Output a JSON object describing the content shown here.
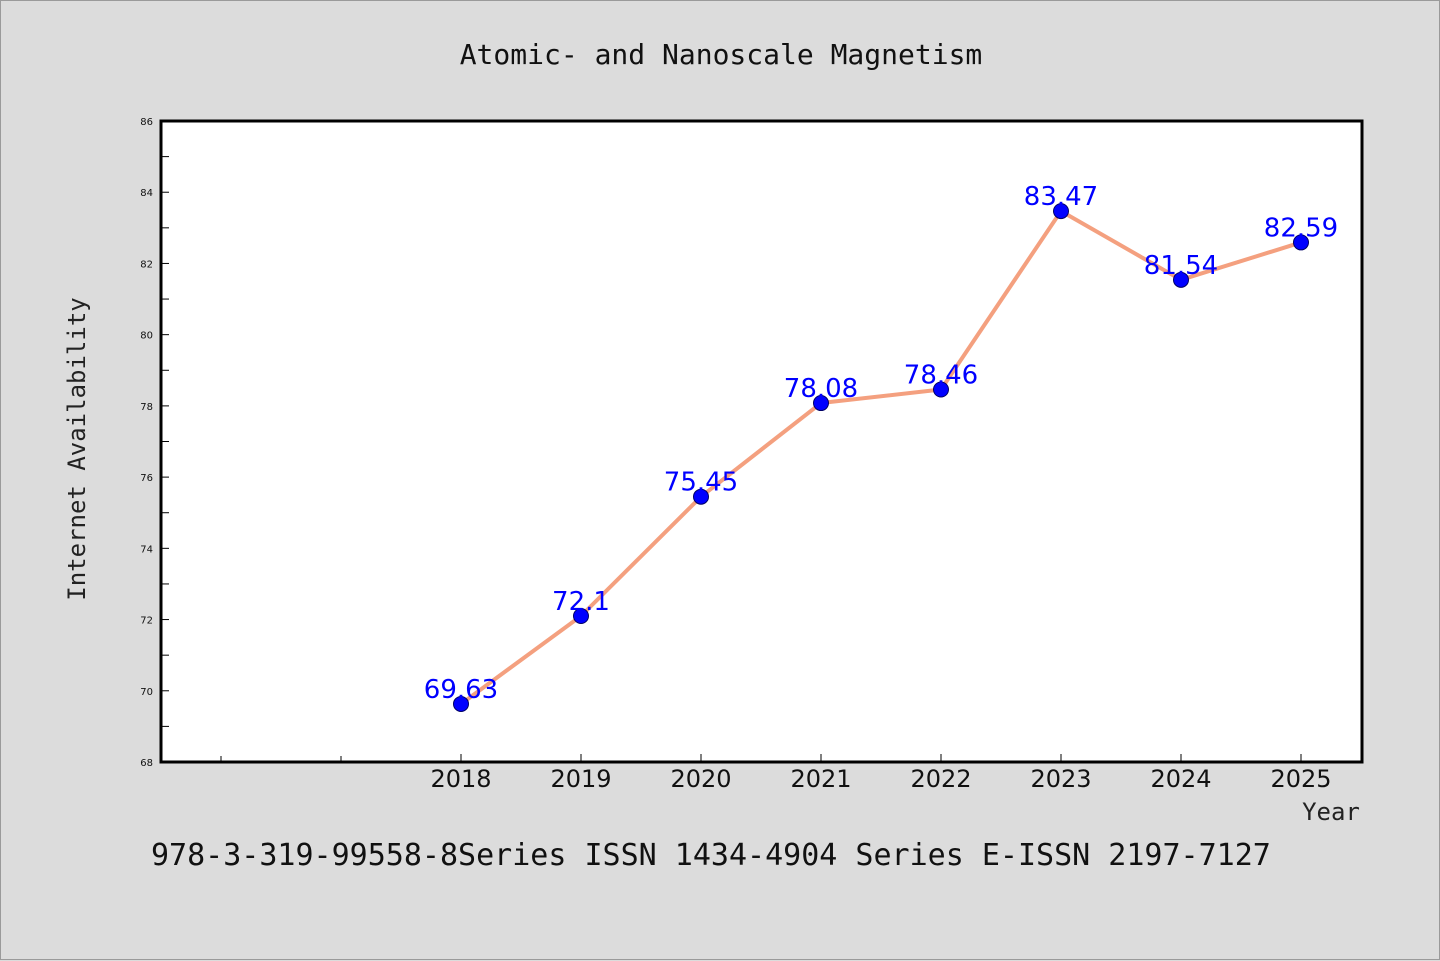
{
  "colors": {
    "background": "#dcdcdc",
    "plot_background": "#ffffff",
    "line": "#f4a07f",
    "marker": "#0000ff",
    "data_label": "#0000ff"
  },
  "chart_data": {
    "type": "line",
    "title": "Atomic- and Nanoscale Magnetism",
    "xlabel": "Year",
    "ylabel": "Internet Availability",
    "x": [
      "2018",
      "2019",
      "2020",
      "2021",
      "2022",
      "2023",
      "2024",
      "2025"
    ],
    "values": [
      69.63,
      72.1,
      75.45,
      78.08,
      78.46,
      83.47,
      81.54,
      82.59
    ],
    "data_labels": [
      "69.63",
      "72.1",
      "75.45",
      "78.08",
      "78.46",
      "83.47",
      "81.54",
      "82.59"
    ],
    "ylim": [
      68,
      86
    ],
    "yticks": [
      "68",
      "70",
      "72",
      "74",
      "76",
      "78",
      "80",
      "82",
      "84",
      "86"
    ],
    "grid": false,
    "legend": "none"
  },
  "footer": "978-3-319-99558-8Series ISSN 1434-4904 Series E-ISSN 2197-7127"
}
